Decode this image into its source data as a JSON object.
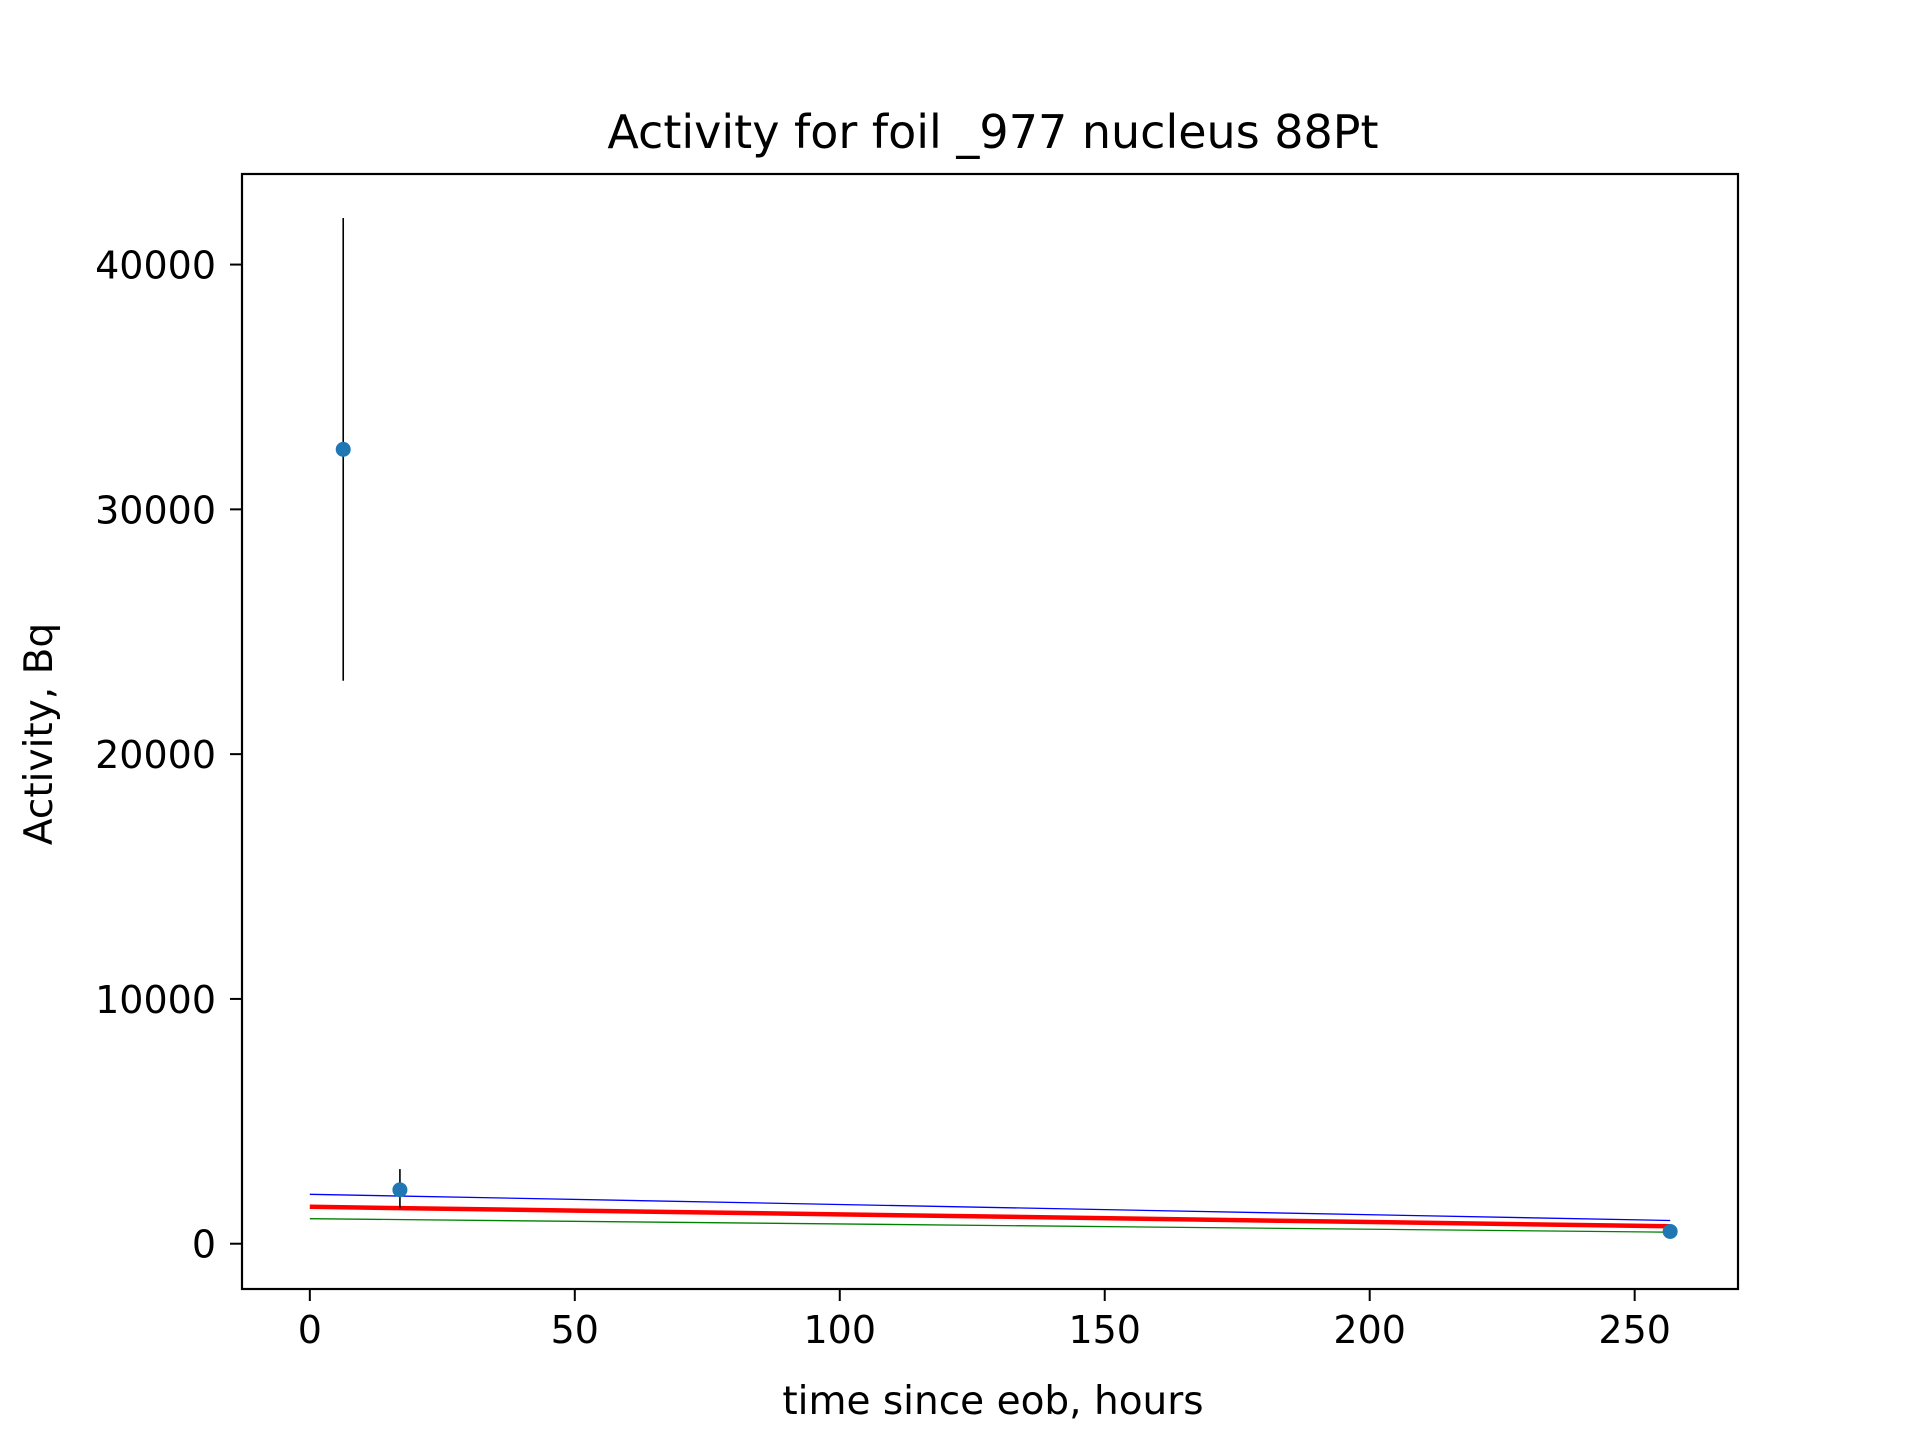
{
  "chart_data": {
    "type": "scatter",
    "title": "Activity for foil _977 nucleus 88Pt",
    "xlabel": "time since eob, hours",
    "ylabel": "Activity, Bq",
    "xlim": [
      -12.8,
      269.5
    ],
    "ylim": [
      -1850,
      43700
    ],
    "xticks": [
      0,
      50,
      100,
      150,
      200,
      250
    ],
    "yticks": [
      0,
      10000,
      20000,
      30000,
      40000
    ],
    "grid": false,
    "points": {
      "color": "#1f77b4",
      "x": [
        6.3,
        17.0,
        256.7
      ],
      "y": [
        32450,
        2200,
        500
      ],
      "yerr_low": [
        23000,
        1450,
        420
      ],
      "yerr_high": [
        41900,
        3050,
        580
      ],
      "errorbar_color": "#000000"
    },
    "curves": [
      {
        "color": "#0000ff",
        "x": [
          0,
          256.7
        ],
        "y": [
          2020,
          950
        ],
        "width": "thin"
      },
      {
        "color": "#008000",
        "x": [
          0,
          256.7
        ],
        "y": [
          1020,
          470
        ],
        "width": "thin"
      },
      {
        "color": "#ff0000",
        "x": [
          0,
          256.7
        ],
        "y": [
          1510,
          710
        ],
        "width": "thick"
      }
    ]
  }
}
